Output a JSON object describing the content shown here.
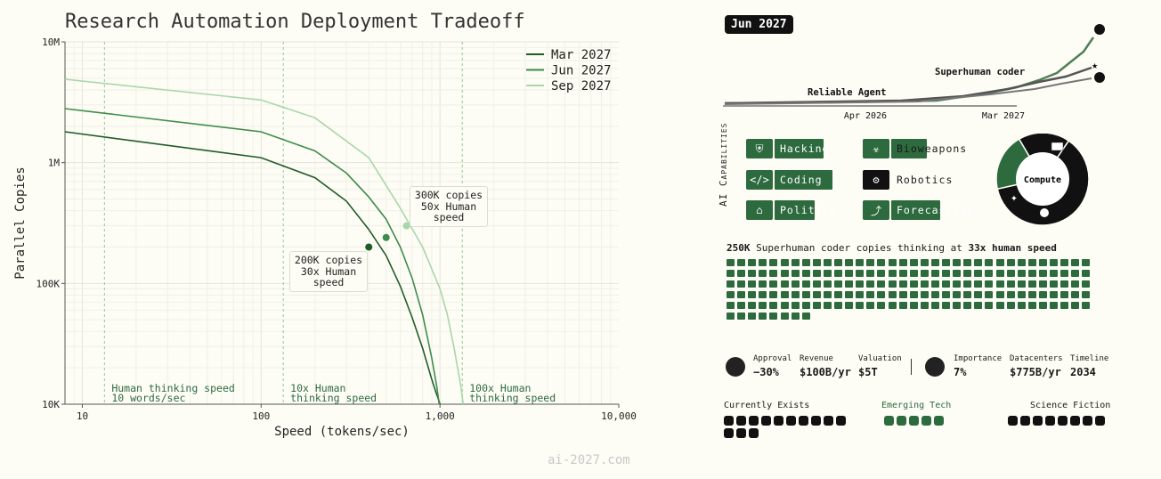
{
  "chart_data": {
    "type": "line",
    "title": "Research Automation Deployment Tradeoff",
    "xlabel": "Speed (tokens/sec)",
    "ylabel": "Parallel Copies",
    "xscale": "log",
    "yscale": "log",
    "xlim": [
      8,
      10000
    ],
    "ylim": [
      10000,
      10000000
    ],
    "x_ticks": [
      "10",
      "100",
      "1,000",
      "10,000"
    ],
    "y_ticks": [
      "10K",
      "100K",
      "1M",
      "10M"
    ],
    "grid": true,
    "legend_position": "top-right",
    "series": [
      {
        "name": "Mar 2027",
        "color": "#1f5b28",
        "x": [
          8,
          100,
          200,
          300,
          400,
          500,
          600,
          700,
          800,
          900,
          950,
          980,
          1000
        ],
        "y": [
          1800000,
          1100000,
          750000,
          480000,
          280000,
          170000,
          95000,
          52000,
          29000,
          16000,
          12500,
          11000,
          10000
        ]
      },
      {
        "name": "Jun 2027",
        "color": "#3f8b4b",
        "x": [
          8,
          100,
          200,
          300,
          400,
          500,
          600,
          700,
          800,
          900,
          960,
          990
        ],
        "y": [
          2800000,
          1800000,
          1250000,
          820000,
          520000,
          340000,
          200000,
          110000,
          55000,
          24000,
          14000,
          10000
        ]
      },
      {
        "name": "Sep 2027",
        "color": "#a9d6a9",
        "x": [
          8,
          100,
          200,
          400,
          600,
          800,
          1000,
          1100,
          1200,
          1300,
          1350
        ],
        "y": [
          4900000,
          3300000,
          2350000,
          1100000,
          420000,
          200000,
          90000,
          55000,
          29000,
          15000,
          10000
        ]
      }
    ],
    "points": [
      {
        "series": "Mar 2027",
        "x": 400,
        "y": 200000
      },
      {
        "series": "Jun 2027",
        "x": 500,
        "y": 240000
      },
      {
        "series": "Sep 2027",
        "x": 650,
        "y": 300000
      }
    ],
    "reference_lines": [
      {
        "x": 13.3,
        "label": "Human thinking speed\n10 words/sec"
      },
      {
        "x": 133,
        "label": "10x Human\nthinking speed"
      },
      {
        "x": 1333,
        "label": "100x Human\nthinking speed"
      }
    ],
    "annotations": [
      {
        "text": "300K copies\n50x Human\nspeed"
      },
      {
        "text": "200K copies\n30x Human\nspeed"
      }
    ]
  },
  "watermark": "ai-2027.com",
  "panel": {
    "date": "Jun 2027",
    "timeline": {
      "labels": [
        "Reliable Agent",
        "Superhuman coder"
      ],
      "axis_ticks": [
        "Apr 2026",
        "Mar 2027"
      ]
    },
    "capabilities_title": "AI Capabilities",
    "capabilities": [
      {
        "label": "Hacking",
        "icon": "shield-icon",
        "glyph": "⛨",
        "level": 0.55
      },
      {
        "label": "Bioweapons",
        "icon": "biohazard-icon",
        "glyph": "☣",
        "level": 0.4
      },
      {
        "label": "Coding",
        "icon": "code-icon",
        "glyph": "</>",
        "level": 0.65
      },
      {
        "label": "Robotics",
        "icon": "robot-icon",
        "glyph": "⚙",
        "level": 0.05
      },
      {
        "label": "Politics",
        "icon": "bank-icon",
        "glyph": "⌂",
        "level": 0.45
      },
      {
        "label": "Forecasting",
        "icon": "trend-icon",
        "glyph": "⤴",
        "level": 0.55
      }
    ],
    "compute": {
      "label": "Compute",
      "shares": [
        {
          "name": "us",
          "value": 0.62,
          "color": "#111111"
        },
        {
          "name": "openbrain",
          "value": 0.2,
          "color": "#2d6a3e"
        },
        {
          "name": "other",
          "value": 0.18,
          "color": "#111111"
        }
      ]
    },
    "copies_line": {
      "count": "250K",
      "middle": "Superhuman coder copies thinking at",
      "speed": "33x human speed"
    },
    "copies_grid": {
      "squares": 178,
      "color": "#2d6a3e"
    },
    "stats_left": {
      "icon": "openbrain-logo-icon",
      "items": [
        {
          "label": "Approval",
          "value": "−30%"
        },
        {
          "label": "Revenue",
          "value": "$100B/yr"
        },
        {
          "label": "Valuation",
          "value": "$5T"
        }
      ]
    },
    "stats_right": {
      "icon": "globe-icon",
      "items": [
        {
          "label": "Importance",
          "value": "7%"
        },
        {
          "label": "Datacenters",
          "value": "$775B/yr"
        },
        {
          "label": "Timeline",
          "value": "2034"
        }
      ]
    },
    "tech_categories": [
      {
        "label": "Currently Exists",
        "count": 13,
        "color": "#111111"
      },
      {
        "label": "Emerging Tech",
        "count": 5,
        "color": "#2d6a3e"
      },
      {
        "label": "Science Fiction",
        "count": 8,
        "color": "#111111"
      }
    ]
  }
}
